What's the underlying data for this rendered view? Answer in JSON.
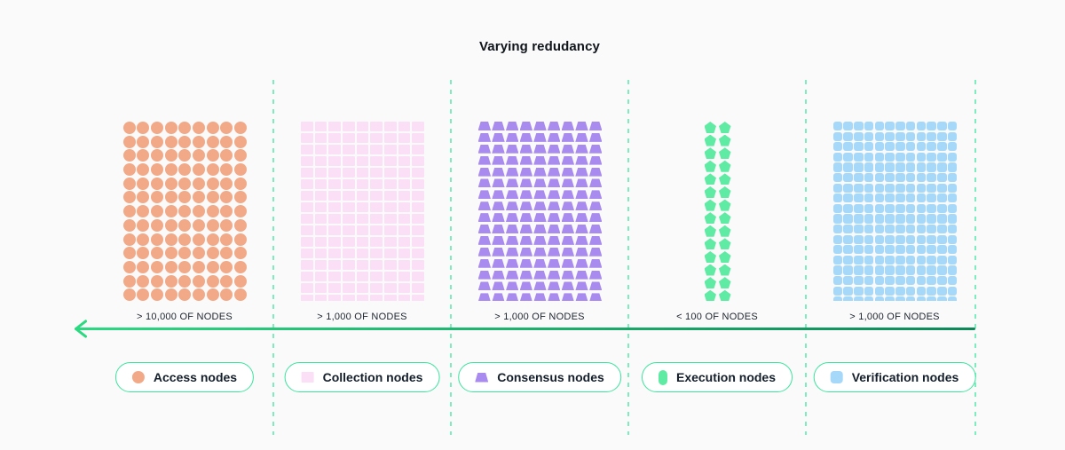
{
  "title": "Varying redudancy",
  "colors": {
    "background": "#fafafa",
    "divider_dash": "#7dedbf",
    "arrow_gradient_start": "#2bd981",
    "arrow_gradient_end": "#0b8a58",
    "pill_border": "#3ae49d",
    "text_dark": "#141f2b"
  },
  "columns": [
    {
      "name": "access",
      "count_label": "> 10,000 OF NODES",
      "legend": {
        "label": "Access nodes",
        "icon": "access-node-icon"
      },
      "grid": {
        "shape": "circle",
        "color": "#f2a987",
        "cols": 9,
        "rows": 13
      }
    },
    {
      "name": "collection",
      "count_label": "> 1,000 OF NODES",
      "legend": {
        "label": "Collection nodes",
        "icon": "collection-node-icon"
      },
      "grid": {
        "shape": "square",
        "color": "#fbdff7",
        "cols": 9,
        "rows": 16
      }
    },
    {
      "name": "consensus",
      "count_label": "> 1,000 OF NODES",
      "legend": {
        "label": "Consensus nodes",
        "icon": "consensus-node-icon"
      },
      "grid": {
        "shape": "trapezoid",
        "color": "#a98bf0",
        "cols": 9,
        "rows": 16
      }
    },
    {
      "name": "execution",
      "count_label": "< 100 OF NODES",
      "legend": {
        "label": "Execution nodes",
        "icon": "execution-node-icon"
      },
      "grid": {
        "shape": "pentagon",
        "color": "#5feba4",
        "cols": 2,
        "rows": 14
      }
    },
    {
      "name": "verification",
      "count_label": "> 1,000 OF NODES",
      "legend": {
        "label": "Verification nodes",
        "icon": "verification-node-icon"
      },
      "grid": {
        "shape": "rounded-square",
        "color": "#a5d8f9",
        "cols": 12,
        "rows": 18
      }
    }
  ]
}
